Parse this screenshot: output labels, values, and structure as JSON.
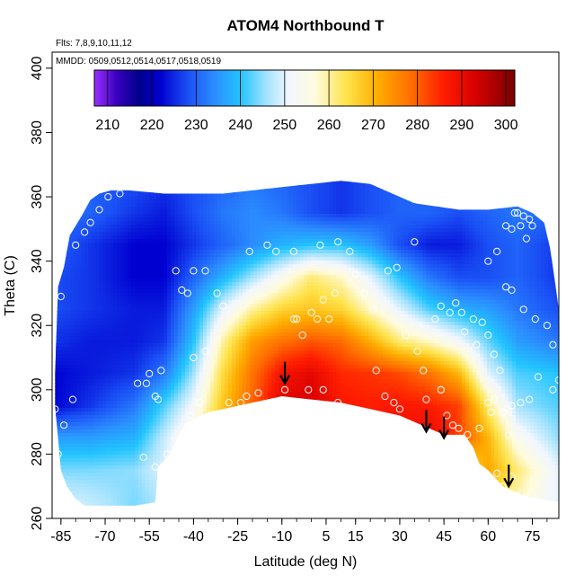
{
  "chart_data": {
    "type": "heatmap",
    "title": "ATOM4 Northbound T",
    "annotations": {
      "flights": "Flts: 7,8,9,10,11,12",
      "dates": "MMDD: 0509,0512,0514,0517,0518,0519"
    },
    "xlabel": "Latitude (deg N)",
    "ylabel": "Theta (C)",
    "xlim": [
      -88,
      84
    ],
    "ylim": [
      260,
      405
    ],
    "x_ticks": [
      -85,
      -70,
      -55,
      -40,
      -25,
      -10,
      5,
      15,
      30,
      45,
      60,
      75
    ],
    "x_tick_labels": [
      "-85",
      "-70",
      "-55",
      "-40",
      "-25",
      "-10",
      "5",
      "15",
      "30",
      "45",
      "60",
      "75"
    ],
    "y_ticks": [
      260,
      280,
      300,
      320,
      340,
      360,
      380,
      400
    ],
    "y_tick_labels": [
      "260",
      "280",
      "300",
      "320",
      "340",
      "360",
      "380",
      "400"
    ],
    "colorbar": {
      "range": [
        207,
        302
      ],
      "ticks": [
        210,
        220,
        230,
        240,
        250,
        260,
        270,
        280,
        290,
        300
      ],
      "tick_labels": [
        "210",
        "220",
        "230",
        "240",
        "250",
        "260",
        "270",
        "280",
        "290",
        "300"
      ],
      "stops": [
        {
          "v": 207,
          "c": "#9b30ff"
        },
        {
          "v": 212,
          "c": "#3a00c0"
        },
        {
          "v": 217,
          "c": "#00008b"
        },
        {
          "v": 222,
          "c": "#0000d0"
        },
        {
          "v": 228,
          "c": "#1a4ff5"
        },
        {
          "v": 234,
          "c": "#2b8cff"
        },
        {
          "v": 240,
          "c": "#22c4ff"
        },
        {
          "v": 246,
          "c": "#a6e3ff"
        },
        {
          "v": 251,
          "c": "#f2f7ff"
        },
        {
          "v": 257,
          "c": "#fffbdc"
        },
        {
          "v": 264,
          "c": "#ffe34a"
        },
        {
          "v": 271,
          "c": "#ffad00"
        },
        {
          "v": 279,
          "c": "#ff6a00"
        },
        {
          "v": 286,
          "c": "#ff1c00"
        },
        {
          "v": 293,
          "c": "#d80000"
        },
        {
          "v": 302,
          "c": "#7a0000"
        }
      ]
    },
    "top_boundary": [
      [
        -87,
        305
      ],
      [
        -86,
        332
      ],
      [
        -84,
        338
      ],
      [
        -82,
        348
      ],
      [
        -78,
        354
      ],
      [
        -75,
        359
      ],
      [
        -72,
        361
      ],
      [
        -68,
        362
      ],
      [
        -62,
        362
      ],
      [
        -50,
        361
      ],
      [
        -30,
        361
      ],
      [
        -10,
        363
      ],
      [
        10,
        365
      ],
      [
        20,
        364
      ],
      [
        35,
        358
      ],
      [
        50,
        356
      ],
      [
        60,
        356
      ],
      [
        70,
        357
      ],
      [
        75,
        355
      ],
      [
        79,
        352
      ],
      [
        81,
        344
      ],
      [
        82,
        338
      ],
      [
        84,
        325
      ]
    ],
    "bottom_boundary": [
      [
        84,
        265
      ],
      [
        78,
        266
      ],
      [
        72,
        267
      ],
      [
        65,
        270
      ],
      [
        60,
        275
      ],
      [
        57,
        277
      ],
      [
        55,
        282
      ],
      [
        52,
        286
      ],
      [
        45,
        286
      ],
      [
        40,
        288
      ],
      [
        30,
        292
      ],
      [
        20,
        294
      ],
      [
        10,
        296
      ],
      [
        0,
        297
      ],
      [
        -10,
        298
      ],
      [
        -20,
        296
      ],
      [
        -30,
        294
      ],
      [
        -35,
        293
      ],
      [
        -40,
        291
      ],
      [
        -43,
        289
      ],
      [
        -45,
        286
      ],
      [
        -48,
        280
      ],
      [
        -52,
        276
      ],
      [
        -53,
        265
      ],
      [
        -60,
        264
      ],
      [
        -70,
        264
      ],
      [
        -77,
        264
      ],
      [
        -80,
        266
      ],
      [
        -83,
        270
      ],
      [
        -85,
        275
      ],
      [
        -86,
        285
      ],
      [
        -87,
        295
      ]
    ],
    "temperature_grid": {
      "lat_nodes": [
        -88,
        -75,
        -60,
        -50,
        -40,
        -30,
        -20,
        -10,
        0,
        10,
        20,
        30,
        40,
        50,
        60,
        70,
        84
      ],
      "theta_nodes": [
        265,
        275,
        285,
        295,
        305,
        315,
        325,
        335,
        345,
        355,
        365
      ],
      "values": [
        [
          250,
          248,
          244,
          247,
          257,
          264,
          268,
          270,
          268,
          260,
          258,
          252,
          246,
          248,
          265,
          258,
          250
        ],
        [
          244,
          244,
          245,
          250,
          260,
          270,
          277,
          280,
          279,
          277,
          275,
          270,
          262,
          258,
          272,
          262,
          250
        ],
        [
          236,
          236,
          238,
          248,
          258,
          272,
          283,
          292,
          292,
          287,
          286,
          289,
          291,
          283,
          270,
          254,
          245
        ],
        [
          222,
          226,
          232,
          242,
          252,
          268,
          280,
          292,
          293,
          287,
          286,
          287,
          286,
          283,
          262,
          246,
          242
        ],
        [
          222,
          224,
          226,
          232,
          246,
          265,
          278,
          288,
          291,
          285,
          284,
          282,
          278,
          270,
          250,
          242,
          240
        ],
        [
          226,
          224,
          224,
          226,
          240,
          260,
          273,
          278,
          281,
          279,
          271,
          262,
          258,
          252,
          243,
          236,
          232
        ],
        [
          228,
          226,
          224,
          224,
          236,
          250,
          260,
          266,
          268,
          266,
          258,
          250,
          242,
          238,
          236,
          232,
          228
        ],
        [
          228,
          226,
          222,
          222,
          230,
          238,
          246,
          254,
          262,
          258,
          250,
          240,
          232,
          228,
          228,
          230,
          226
        ],
        [
          230,
          226,
          222,
          222,
          226,
          230,
          234,
          238,
          240,
          240,
          236,
          228,
          224,
          224,
          228,
          230,
          226
        ],
        [
          232,
          230,
          226,
          224,
          228,
          232,
          234,
          232,
          228,
          226,
          228,
          230,
          230,
          228,
          230,
          232,
          230
        ],
        [
          232,
          230,
          228,
          226,
          228,
          230,
          232,
          230,
          228,
          226,
          228,
          230,
          230,
          228,
          230,
          232,
          230
        ]
      ]
    },
    "observation_points": [
      [
        -87,
        294
      ],
      [
        -84,
        289
      ],
      [
        -81,
        297
      ],
      [
        -86,
        280
      ],
      [
        -85,
        329
      ],
      [
        -80,
        345
      ],
      [
        -77,
        349
      ],
      [
        -75,
        352
      ],
      [
        -72,
        356
      ],
      [
        -69,
        360
      ],
      [
        -65,
        361
      ],
      [
        -59,
        302
      ],
      [
        -55,
        305
      ],
      [
        -53,
        298
      ],
      [
        -52,
        297
      ],
      [
        -56,
        302
      ],
      [
        -51,
        306
      ],
      [
        -53,
        276
      ],
      [
        -57,
        279
      ],
      [
        -49,
        280
      ],
      [
        -46,
        337
      ],
      [
        -40,
        337
      ],
      [
        -42,
        330
      ],
      [
        -36,
        337
      ],
      [
        -44,
        331
      ],
      [
        -41,
        292
      ],
      [
        -38,
        296
      ],
      [
        -40,
        310
      ],
      [
        -36,
        312
      ],
      [
        -32,
        330
      ],
      [
        -30,
        326
      ],
      [
        -28,
        296
      ],
      [
        -24,
        296
      ],
      [
        -22,
        298
      ],
      [
        -18,
        299
      ],
      [
        -21,
        343
      ],
      [
        -15,
        345
      ],
      [
        -12,
        343
      ],
      [
        -6,
        343
      ],
      [
        -9,
        300
      ],
      [
        -5,
        322
      ],
      [
        -6,
        322
      ],
      [
        -3,
        317
      ],
      [
        0,
        324
      ],
      [
        2,
        322
      ],
      [
        4,
        328
      ],
      [
        6,
        322
      ],
      [
        8,
        330
      ],
      [
        -1,
        300
      ],
      [
        4,
        300
      ],
      [
        9,
        296
      ],
      [
        3,
        345
      ],
      [
        9,
        346
      ],
      [
        13,
        343
      ],
      [
        15,
        336
      ],
      [
        18,
        330
      ],
      [
        21,
        325
      ],
      [
        22,
        306
      ],
      [
        25,
        298
      ],
      [
        28,
        296
      ],
      [
        30,
        294
      ],
      [
        26,
        337
      ],
      [
        29,
        338
      ],
      [
        35,
        346
      ],
      [
        32,
        317
      ],
      [
        36,
        312
      ],
      [
        38,
        306
      ],
      [
        42,
        322
      ],
      [
        44,
        326
      ],
      [
        47,
        324
      ],
      [
        49,
        327
      ],
      [
        51,
        324
      ],
      [
        39,
        297
      ],
      [
        44,
        300
      ],
      [
        46,
        292
      ],
      [
        48,
        289
      ],
      [
        50,
        288
      ],
      [
        53,
        286
      ],
      [
        57,
        288
      ],
      [
        56,
        314
      ],
      [
        52,
        318
      ],
      [
        55,
        322
      ],
      [
        58,
        321
      ],
      [
        60,
        317
      ],
      [
        62,
        311
      ],
      [
        64,
        306
      ],
      [
        62,
        297
      ],
      [
        60,
        296
      ],
      [
        61,
        293
      ],
      [
        63,
        274
      ],
      [
        65,
        270
      ],
      [
        68,
        273
      ],
      [
        70,
        267
      ],
      [
        66,
        351
      ],
      [
        68,
        350
      ],
      [
        70,
        355
      ],
      [
        72,
        354
      ],
      [
        74,
        353
      ],
      [
        73,
        347
      ],
      [
        69,
        355
      ],
      [
        75,
        351
      ],
      [
        71,
        351
      ],
      [
        63,
        343
      ],
      [
        60,
        340
      ],
      [
        66,
        332
      ],
      [
        68,
        331
      ],
      [
        72,
        325
      ],
      [
        76,
        322
      ],
      [
        80,
        320
      ],
      [
        82,
        314
      ],
      [
        84,
        303
      ],
      [
        82,
        300
      ],
      [
        77,
        304
      ],
      [
        74,
        297
      ],
      [
        71,
        296
      ],
      [
        68,
        295
      ],
      [
        65,
        293
      ],
      [
        67,
        286
      ]
    ],
    "arrows": [
      {
        "lat": -9,
        "theta": 302
      },
      {
        "lat": 39,
        "theta": 287
      },
      {
        "lat": 45,
        "theta": 285
      },
      {
        "lat": 67,
        "theta": 270
      }
    ]
  }
}
